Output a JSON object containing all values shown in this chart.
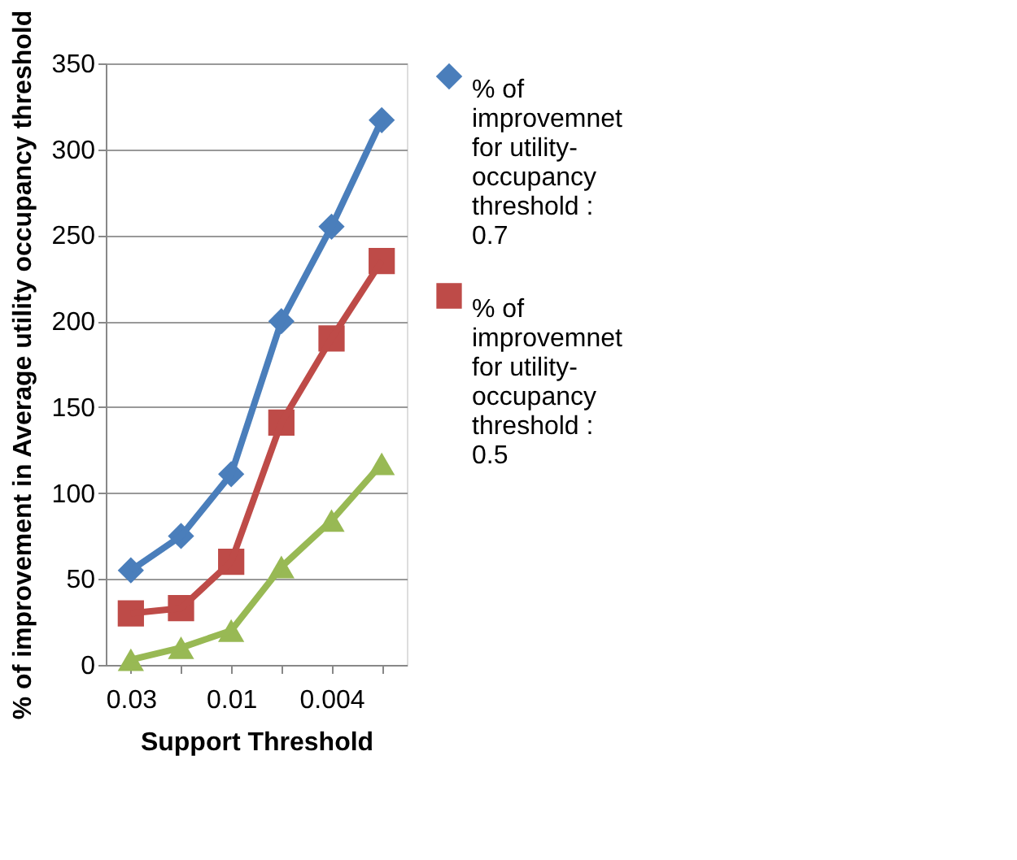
{
  "chart_data": {
    "type": "line",
    "xlabel": "Support Threshold",
    "ylabel": "% of improvement in Average utility occupancy threshold",
    "categories": [
      "0.03",
      null,
      "0.01",
      null,
      "0.004",
      null
    ],
    "series": [
      {
        "name": "% of improvemnet for utility-occupancy threshold : 0.7",
        "color": "#4a7ebb",
        "marker": "diamond",
        "values": [
          55,
          75,
          111,
          200,
          255,
          317
        ]
      },
      {
        "name": "% of improvemnet for utility-occupancy threshold : 0.5",
        "color": "#be4b48",
        "marker": "square",
        "values": [
          30,
          33,
          60,
          141,
          190,
          235
        ]
      },
      {
        "color": "#98b954",
        "marker": "triangle",
        "values": [
          3,
          10,
          20,
          57,
          84,
          117
        ]
      }
    ],
    "ylim": [
      0,
      350
    ],
    "yticks": [
      0,
      50,
      100,
      150,
      200,
      250,
      300,
      350
    ],
    "grid": "y",
    "legend": "right",
    "line_style": "solid"
  }
}
